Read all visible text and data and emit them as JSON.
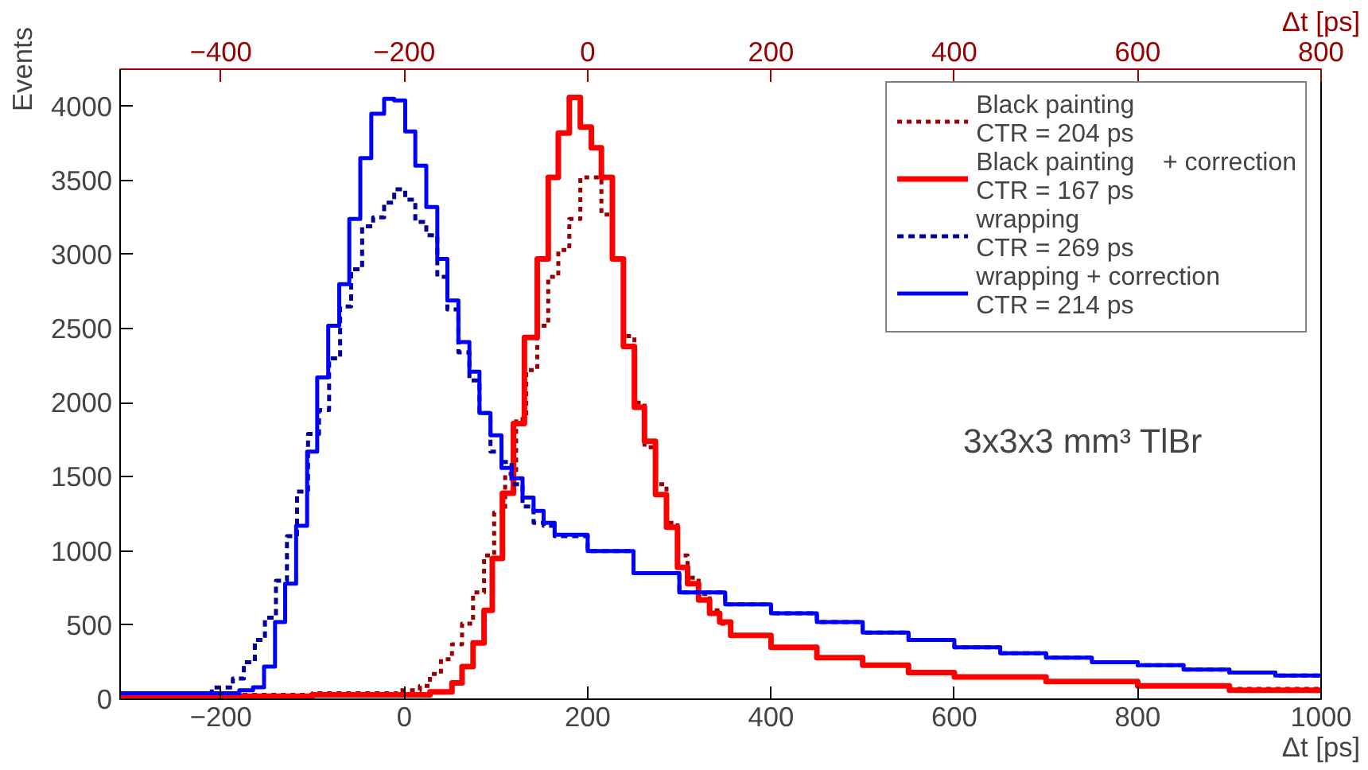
{
  "chart_data": {
    "type": "step",
    "xlabel": "Δt [ps]",
    "ylabel": "Events",
    "x2label": "Δt [ps]",
    "xlim": [
      -310,
      1000
    ],
    "xticks": [
      -200,
      0,
      200,
      400,
      600,
      800,
      1000
    ],
    "x2lim": [
      -510,
      800
    ],
    "x2ticks": [
      -400,
      -200,
      0,
      200,
      400,
      600,
      800
    ],
    "ylim": [
      0,
      4250
    ],
    "yticks": [
      0,
      500,
      1000,
      1500,
      2000,
      2500,
      3000,
      3500,
      4000
    ],
    "grid": false,
    "legend": "top right",
    "line_style": "solid",
    "annotations": [
      "3x3x3 mm³ TlBr"
    ],
    "series": [
      {
        "name": "Black painting\nCTR = 204 ps",
        "color": "#990000",
        "line_style": "dotted",
        "x": [
          -310,
          -200,
          -100,
          -7,
          17,
          28,
          40,
          52,
          63,
          75,
          87,
          98,
          110,
          122,
          133,
          145,
          157,
          168,
          180,
          192,
          204,
          215,
          227,
          239,
          251,
          262,
          274,
          286,
          298,
          309,
          321,
          333,
          344,
          356,
          400,
          450,
          500,
          550,
          600,
          700,
          800,
          900,
          1000
        ],
        "values": [
          20,
          30,
          40,
          60,
          90,
          170,
          270,
          370,
          510,
          720,
          970,
          1260,
          1520,
          1890,
          2220,
          2520,
          2850,
          3030,
          3240,
          3520,
          3520,
          3270,
          2970,
          2450,
          2000,
          1700,
          1450,
          1190,
          970,
          820,
          710,
          600,
          510,
          430,
          350,
          280,
          230,
          180,
          150,
          120,
          90,
          70,
          70
        ]
      },
      {
        "name": "Black painting    + correction\nCTR = 167 ps",
        "color": "#ff0000",
        "x": [
          -310,
          -100,
          28,
          52,
          63,
          75,
          87,
          96,
          107,
          119,
          131,
          145,
          157,
          168,
          180,
          192,
          204,
          215,
          227,
          239,
          251,
          262,
          274,
          286,
          298,
          309,
          321,
          333,
          344,
          356,
          400,
          450,
          500,
          550,
          600,
          700,
          800,
          900,
          1000
        ],
        "values": [
          20,
          30,
          50,
          110,
          220,
          380,
          600,
          950,
          1390,
          1860,
          2440,
          2970,
          3520,
          3820,
          4060,
          3860,
          3720,
          3520,
          2970,
          2380,
          1970,
          1740,
          1380,
          1160,
          890,
          780,
          670,
          580,
          520,
          430,
          350,
          280,
          230,
          180,
          150,
          120,
          90,
          60,
          60
        ]
      },
      {
        "name": "wrapping\nCTR = 269 ps",
        "color": "#000099",
        "line_style": "dashed",
        "x": [
          -310,
          -210,
          -187,
          -175,
          -163,
          -152,
          -140,
          -128,
          -117,
          -105,
          -93,
          -82,
          -70,
          -58,
          -46,
          -34,
          -22,
          -11,
          1,
          12,
          24,
          36,
          47,
          59,
          71,
          82,
          94,
          106,
          117,
          129,
          141,
          152,
          164,
          200,
          250,
          300,
          350,
          400,
          450,
          500,
          550,
          600,
          650,
          700,
          750,
          800,
          850,
          900,
          950,
          1000
        ],
        "values": [
          40,
          79,
          140,
          250,
          400,
          550,
          800,
          1100,
          1400,
          1790,
          1950,
          2300,
          2650,
          2900,
          3190,
          3250,
          3350,
          3440,
          3370,
          3220,
          3130,
          2850,
          2630,
          2340,
          2150,
          1930,
          1670,
          1600,
          1450,
          1300,
          1190,
          1170,
          1100,
          1000,
          850,
          720,
          640,
          580,
          520,
          450,
          400,
          350,
          310,
          280,
          250,
          230,
          200,
          180,
          160,
          160
        ]
      },
      {
        "name": "wrapping + correction\nCTR = 214 ps",
        "color": "#0000ff",
        "x": [
          -310,
          -180,
          -165,
          -153,
          -141,
          -130,
          -118,
          -106,
          -95,
          -83,
          -71,
          -60,
          -48,
          -36,
          -22,
          -11,
          1,
          12,
          24,
          36,
          47,
          59,
          71,
          82,
          94,
          106,
          117,
          129,
          141,
          152,
          164,
          200,
          250,
          300,
          350,
          400,
          450,
          500,
          550,
          600,
          650,
          700,
          750,
          800,
          850,
          900,
          950,
          1000
        ],
        "values": [
          40,
          60,
          80,
          220,
          520,
          780,
          1170,
          1670,
          2170,
          2520,
          2800,
          3240,
          3650,
          3950,
          4050,
          4040,
          3830,
          3600,
          3320,
          2970,
          2690,
          2410,
          2210,
          1930,
          1780,
          1560,
          1490,
          1360,
          1270,
          1190,
          1110,
          1000,
          850,
          720,
          640,
          580,
          520,
          450,
          400,
          350,
          310,
          280,
          250,
          230,
          200,
          180,
          160,
          160
        ]
      }
    ]
  }
}
